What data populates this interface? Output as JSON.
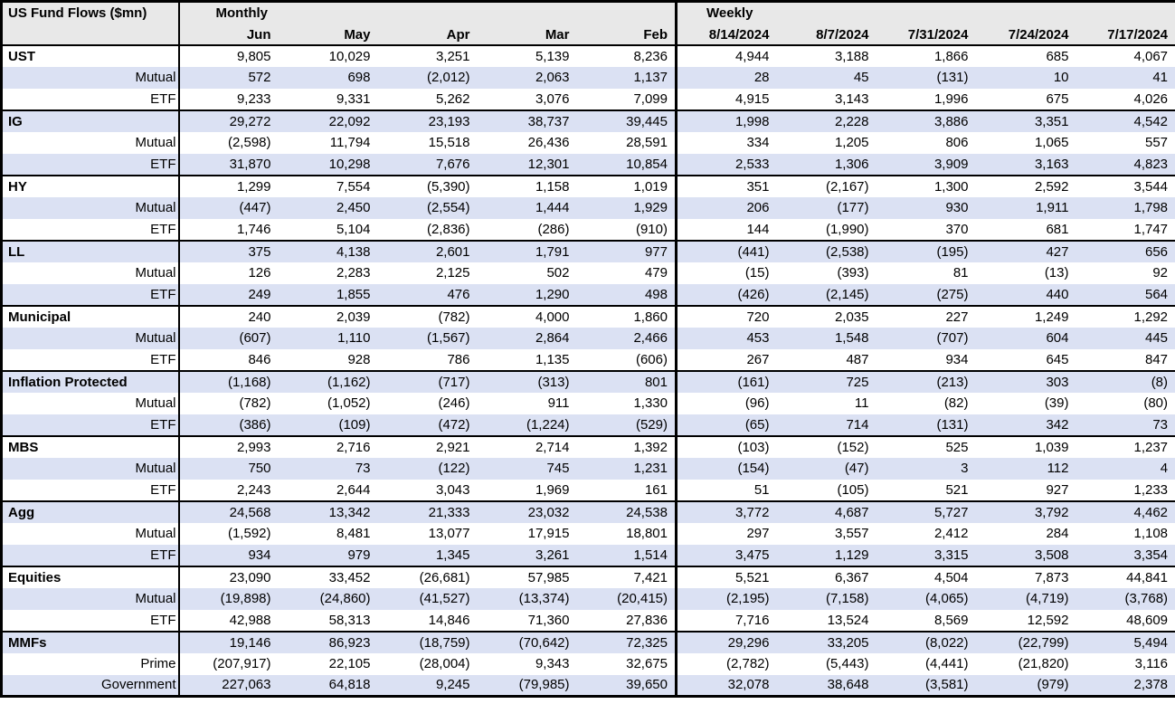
{
  "colors": {
    "stripe_row_bg": "#dbe1f3",
    "header_bg": "#e8e8e8",
    "border": "#000000",
    "text": "#000000"
  },
  "chart_data": {
    "type": "table",
    "title": "US Fund Flows ($mn)",
    "column_groups": [
      {
        "label": "Monthly",
        "columns": [
          "Jun",
          "May",
          "Apr",
          "Mar",
          "Feb"
        ]
      },
      {
        "label": "Weekly",
        "columns": [
          "8/14/2024",
          "8/7/2024",
          "7/31/2024",
          "7/24/2024",
          "7/17/2024"
        ]
      }
    ],
    "rows": [
      {
        "label": "UST",
        "type": "group",
        "values": [
          "9,805",
          "10,029",
          "3,251",
          "5,139",
          "8,236",
          "4,944",
          "3,188",
          "1,866",
          "685",
          "4,067"
        ]
      },
      {
        "label": "Mutual",
        "type": "sub",
        "values": [
          "572",
          "698",
          "(2,012)",
          "2,063",
          "1,137",
          "28",
          "45",
          "(131)",
          "10",
          "41"
        ]
      },
      {
        "label": "ETF",
        "type": "sub",
        "values": [
          "9,233",
          "9,331",
          "5,262",
          "3,076",
          "7,099",
          "4,915",
          "3,143",
          "1,996",
          "675",
          "4,026"
        ]
      },
      {
        "label": "IG",
        "type": "group",
        "values": [
          "29,272",
          "22,092",
          "23,193",
          "38,737",
          "39,445",
          "1,998",
          "2,228",
          "3,886",
          "3,351",
          "4,542"
        ]
      },
      {
        "label": "Mutual",
        "type": "sub",
        "values": [
          "(2,598)",
          "11,794",
          "15,518",
          "26,436",
          "28,591",
          "334",
          "1,205",
          "806",
          "1,065",
          "557"
        ]
      },
      {
        "label": "ETF",
        "type": "sub",
        "values": [
          "31,870",
          "10,298",
          "7,676",
          "12,301",
          "10,854",
          "2,533",
          "1,306",
          "3,909",
          "3,163",
          "4,823"
        ]
      },
      {
        "label": "HY",
        "type": "group",
        "values": [
          "1,299",
          "7,554",
          "(5,390)",
          "1,158",
          "1,019",
          "351",
          "(2,167)",
          "1,300",
          "2,592",
          "3,544"
        ]
      },
      {
        "label": "Mutual",
        "type": "sub",
        "values": [
          "(447)",
          "2,450",
          "(2,554)",
          "1,444",
          "1,929",
          "206",
          "(177)",
          "930",
          "1,911",
          "1,798"
        ]
      },
      {
        "label": "ETF",
        "type": "sub",
        "values": [
          "1,746",
          "5,104",
          "(2,836)",
          "(286)",
          "(910)",
          "144",
          "(1,990)",
          "370",
          "681",
          "1,747"
        ]
      },
      {
        "label": "LL",
        "type": "group",
        "values": [
          "375",
          "4,138",
          "2,601",
          "1,791",
          "977",
          "(441)",
          "(2,538)",
          "(195)",
          "427",
          "656"
        ]
      },
      {
        "label": "Mutual",
        "type": "sub",
        "values": [
          "126",
          "2,283",
          "2,125",
          "502",
          "479",
          "(15)",
          "(393)",
          "81",
          "(13)",
          "92"
        ]
      },
      {
        "label": "ETF",
        "type": "sub",
        "values": [
          "249",
          "1,855",
          "476",
          "1,290",
          "498",
          "(426)",
          "(2,145)",
          "(275)",
          "440",
          "564"
        ]
      },
      {
        "label": "Municipal",
        "type": "group",
        "values": [
          "240",
          "2,039",
          "(782)",
          "4,000",
          "1,860",
          "720",
          "2,035",
          "227",
          "1,249",
          "1,292"
        ]
      },
      {
        "label": "Mutual",
        "type": "sub",
        "values": [
          "(607)",
          "1,110",
          "(1,567)",
          "2,864",
          "2,466",
          "453",
          "1,548",
          "(707)",
          "604",
          "445"
        ]
      },
      {
        "label": "ETF",
        "type": "sub",
        "values": [
          "846",
          "928",
          "786",
          "1,135",
          "(606)",
          "267",
          "487",
          "934",
          "645",
          "847"
        ]
      },
      {
        "label": "Inflation Protected",
        "type": "group",
        "values": [
          "(1,168)",
          "(1,162)",
          "(717)",
          "(313)",
          "801",
          "(161)",
          "725",
          "(213)",
          "303",
          "(8)"
        ]
      },
      {
        "label": "Mutual",
        "type": "sub",
        "values": [
          "(782)",
          "(1,052)",
          "(246)",
          "911",
          "1,330",
          "(96)",
          "11",
          "(82)",
          "(39)",
          "(80)"
        ]
      },
      {
        "label": "ETF",
        "type": "sub",
        "values": [
          "(386)",
          "(109)",
          "(472)",
          "(1,224)",
          "(529)",
          "(65)",
          "714",
          "(131)",
          "342",
          "73"
        ]
      },
      {
        "label": "MBS",
        "type": "group",
        "values": [
          "2,993",
          "2,716",
          "2,921",
          "2,714",
          "1,392",
          "(103)",
          "(152)",
          "525",
          "1,039",
          "1,237"
        ]
      },
      {
        "label": "Mutual",
        "type": "sub",
        "values": [
          "750",
          "73",
          "(122)",
          "745",
          "1,231",
          "(154)",
          "(47)",
          "3",
          "112",
          "4"
        ]
      },
      {
        "label": "ETF",
        "type": "sub",
        "values": [
          "2,243",
          "2,644",
          "3,043",
          "1,969",
          "161",
          "51",
          "(105)",
          "521",
          "927",
          "1,233"
        ]
      },
      {
        "label": "Agg",
        "type": "group",
        "values": [
          "24,568",
          "13,342",
          "21,333",
          "23,032",
          "24,538",
          "3,772",
          "4,687",
          "5,727",
          "3,792",
          "4,462"
        ]
      },
      {
        "label": "Mutual",
        "type": "sub",
        "values": [
          "(1,592)",
          "8,481",
          "13,077",
          "17,915",
          "18,801",
          "297",
          "3,557",
          "2,412",
          "284",
          "1,108"
        ]
      },
      {
        "label": "ETF",
        "type": "sub",
        "values": [
          "934",
          "979",
          "1,345",
          "3,261",
          "1,514",
          "3,475",
          "1,129",
          "3,315",
          "3,508",
          "3,354"
        ]
      },
      {
        "label": "Equities",
        "type": "group",
        "values": [
          "23,090",
          "33,452",
          "(26,681)",
          "57,985",
          "7,421",
          "5,521",
          "6,367",
          "4,504",
          "7,873",
          "44,841"
        ]
      },
      {
        "label": "Mutual",
        "type": "sub",
        "values": [
          "(19,898)",
          "(24,860)",
          "(41,527)",
          "(13,374)",
          "(20,415)",
          "(2,195)",
          "(7,158)",
          "(4,065)",
          "(4,719)",
          "(3,768)"
        ]
      },
      {
        "label": "ETF",
        "type": "sub",
        "values": [
          "42,988",
          "58,313",
          "14,846",
          "71,360",
          "27,836",
          "7,716",
          "13,524",
          "8,569",
          "12,592",
          "48,609"
        ]
      },
      {
        "label": "MMFs",
        "type": "group",
        "values": [
          "19,146",
          "86,923",
          "(18,759)",
          "(70,642)",
          "72,325",
          "29,296",
          "33,205",
          "(8,022)",
          "(22,799)",
          "5,494"
        ]
      },
      {
        "label": "Prime",
        "type": "sub",
        "values": [
          "(207,917)",
          "22,105",
          "(28,004)",
          "9,343",
          "32,675",
          "(2,782)",
          "(5,443)",
          "(4,441)",
          "(21,820)",
          "3,116"
        ]
      },
      {
        "label": "Government",
        "type": "sub",
        "values": [
          "227,063",
          "64,818",
          "9,245",
          "(79,985)",
          "39,650",
          "32,078",
          "38,648",
          "(3,581)",
          "(979)",
          "2,378"
        ]
      }
    ]
  }
}
